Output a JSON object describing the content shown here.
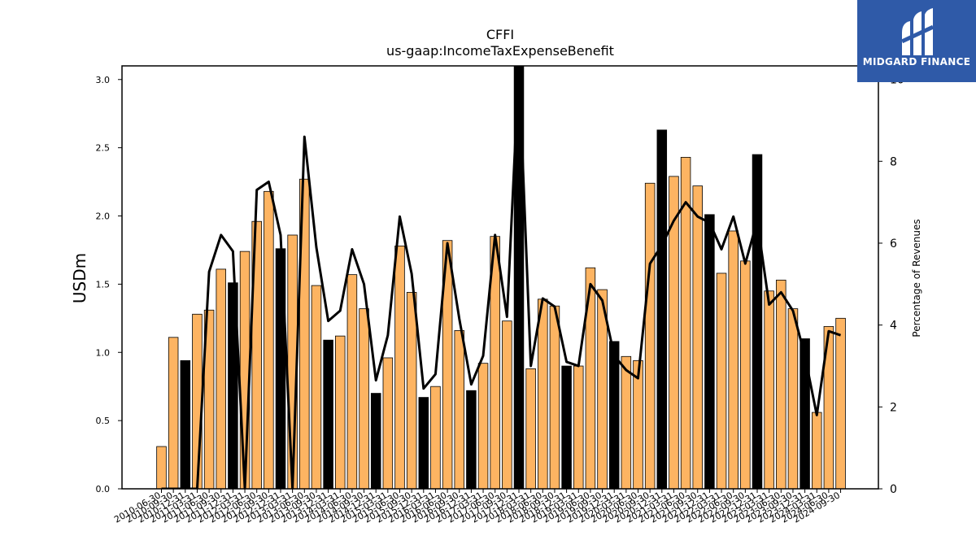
{
  "chart_data": {
    "type": "bar",
    "title": "CFFI",
    "subtitle": "us-gaap:IncomeTaxExpenseBenefit",
    "ylabel": "USDm",
    "y2label": "Percentage of Revenues",
    "ylim": [
      0,
      3.1
    ],
    "y2lim": [
      0,
      10.33
    ],
    "yticks": [
      "0.0",
      "0.5",
      "1.0",
      "1.5",
      "2.0",
      "2.5",
      "3.0"
    ],
    "y2ticks": [
      "0",
      "2",
      "4",
      "6",
      "8",
      "10"
    ],
    "categories": [
      "2010-06-30",
      "2010-09-30",
      "2010-12-31",
      "2011-03-31",
      "2011-06-30",
      "2011-09-30",
      "2011-12-31",
      "2012-03-31",
      "2012-06-30",
      "2012-09-30",
      "2012-12-31",
      "2013-03-31",
      "2013-06-30",
      "2013-09-30",
      "2013-12-31",
      "2014-03-31",
      "2014-06-30",
      "2014-09-30",
      "2014-12-31",
      "2015-03-31",
      "2015-06-30",
      "2015-09-30",
      "2015-12-31",
      "2016-03-31",
      "2016-06-30",
      "2016-09-30",
      "2016-12-31",
      "2017-03-31",
      "2017-06-30",
      "2017-09-30",
      "2017-12-31",
      "2018-03-31",
      "2018-06-30",
      "2018-09-30",
      "2018-12-31",
      "2019-03-31",
      "2019-06-30",
      "2019-09-30",
      "2019-12-31",
      "2020-03-31",
      "2020-06-30",
      "2020-09-30",
      "2020-12-31",
      "2021-03-31",
      "2021-06-30",
      "2021-09-30",
      "2021-12-31",
      "2022-03-31",
      "2022-06-30",
      "2022-09-30",
      "2022-12-31",
      "2023-03-31",
      "2023-06-30",
      "2023-09-30",
      "2023-12-31",
      "2024-03-31",
      "2024-06-30",
      "2024-09-30"
    ],
    "series": [
      {
        "kind": "bar",
        "values": [
          0.31,
          1.11,
          0.94,
          1.28,
          1.31,
          1.61,
          1.51,
          1.74,
          1.96,
          2.18,
          1.76,
          1.86,
          2.27,
          1.49,
          1.09,
          1.12,
          1.57,
          1.32,
          0.7,
          0.96,
          1.78,
          1.44,
          0.67,
          0.75,
          1.82,
          1.16,
          0.72,
          0.92,
          1.85,
          1.23,
          3.1,
          0.88,
          1.39,
          1.34,
          0.9,
          0.9,
          1.62,
          1.46,
          1.08,
          0.97,
          0.94,
          2.24,
          2.63,
          2.29,
          2.43,
          2.22,
          2.01,
          1.58,
          1.89,
          1.67,
          2.45,
          1.45,
          1.53,
          1.32,
          1.1,
          0.56,
          1.19,
          1.25
        ],
        "q4_highlight": [
          false,
          false,
          true,
          false,
          false,
          false,
          true,
          false,
          false,
          false,
          true,
          false,
          false,
          false,
          true,
          false,
          false,
          false,
          true,
          false,
          false,
          false,
          true,
          false,
          false,
          false,
          true,
          false,
          false,
          false,
          true,
          false,
          false,
          false,
          true,
          false,
          false,
          false,
          true,
          false,
          false,
          false,
          true,
          false,
          false,
          false,
          true,
          false,
          false,
          false,
          true,
          false,
          false,
          false,
          true,
          false,
          false,
          false
        ]
      },
      {
        "kind": "line",
        "axis": "right",
        "values": [
          0,
          0,
          0,
          0,
          5.3,
          6.2,
          5.8,
          0,
          7.3,
          7.5,
          6.2,
          0,
          8.6,
          5.9,
          4.1,
          4.35,
          5.85,
          5.0,
          2.65,
          3.75,
          6.65,
          5.25,
          2.45,
          2.8,
          6.0,
          4.15,
          2.55,
          3.25,
          6.2,
          4.2,
          10.33,
          3.0,
          4.65,
          4.45,
          3.1,
          3.0,
          5.0,
          4.6,
          3.25,
          2.9,
          2.7,
          5.5,
          5.95,
          6.55,
          7.0,
          6.65,
          6.5,
          5.85,
          6.65,
          5.5,
          6.55,
          4.5,
          4.8,
          4.35,
          3.25,
          1.8,
          3.85,
          3.75
        ]
      }
    ],
    "colors": {
      "bar": "#fdb462",
      "bar_q4": "#000000",
      "line": "#000000",
      "axis": "#000000"
    },
    "grid": false,
    "legend": "none"
  },
  "logo": {
    "text": "MIDGARD FINANCE",
    "icon": "midgard-logo-icon",
    "background": "#2f5aa8"
  }
}
